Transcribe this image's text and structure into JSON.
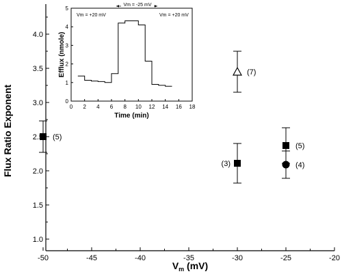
{
  "chart_data": [
    {
      "type": "scatter",
      "xlabel_main": "V",
      "xlabel_sub": "m",
      "xlabel_unit": "(mV)",
      "ylabel": "Flux Ratio Exponent",
      "xlim": [
        -50,
        -20
      ],
      "ylim": [
        1.0,
        4.3
      ],
      "x_ticks": [
        -50,
        -45,
        -40,
        -35,
        -30,
        -25,
        -20
      ],
      "x_tick_labels": [
        "-50",
        "-45",
        "-40",
        "-35",
        "-30",
        "-25",
        "-20"
      ],
      "y_ticks": [
        1.0,
        1.5,
        2.0,
        2.5,
        3.0,
        3.5,
        4.0
      ],
      "y_tick_labels": [
        "1.0",
        "1.5",
        "2.0",
        "2.5",
        "3.0",
        "3.5",
        "4.0"
      ],
      "points": [
        {
          "x": -50,
          "y": 2.5,
          "err": 0.23,
          "marker": "square",
          "label": "(5)",
          "label_side": "right"
        },
        {
          "x": -30,
          "y": 3.45,
          "err": 0.3,
          "marker": "triangle-open",
          "label": "(7)",
          "label_side": "right"
        },
        {
          "x": -30,
          "y": 2.11,
          "err": 0.29,
          "marker": "square",
          "label": "(3)",
          "label_side": "left"
        },
        {
          "x": -25,
          "y": 2.37,
          "err": 0.26,
          "marker": "square",
          "label": "(5)",
          "label_side": "right"
        },
        {
          "x": -25,
          "y": 2.09,
          "err": 0.2,
          "marker": "circle",
          "label": "(4)",
          "label_side": "right"
        }
      ]
    },
    {
      "type": "line",
      "xlabel": "Time (min)",
      "ylabel": "Efflux (nmole)",
      "xlim": [
        0,
        18
      ],
      "ylim": [
        0,
        5
      ],
      "x_ticks": [
        0,
        2,
        4,
        6,
        8,
        10,
        12,
        14,
        16,
        18
      ],
      "x_tick_labels": [
        "0",
        "2",
        "4",
        "6",
        "8",
        "10",
        "12",
        "14",
        "16",
        "18"
      ],
      "y_ticks": [
        0,
        1,
        2,
        3,
        4,
        5
      ],
      "y_tick_labels": [
        "0",
        "1",
        "2",
        "3",
        "4",
        "5"
      ],
      "x": [
        1.5,
        2.5,
        3.5,
        4.5,
        5.5,
        6.5,
        7.5,
        8.5,
        9.5,
        10.5,
        11.5,
        12.5,
        13.5,
        14.5
      ],
      "values": [
        1.35,
        1.12,
        1.08,
        1.05,
        1.0,
        1.48,
        4.2,
        4.32,
        4.32,
        4.1,
        2.15,
        0.9,
        0.85,
        0.8
      ],
      "annotations": [
        {
          "text": "Vm = +20 mV"
        },
        {
          "text": "Vm = -25 mV"
        },
        {
          "text": "Vm = +20 mV"
        }
      ]
    }
  ]
}
